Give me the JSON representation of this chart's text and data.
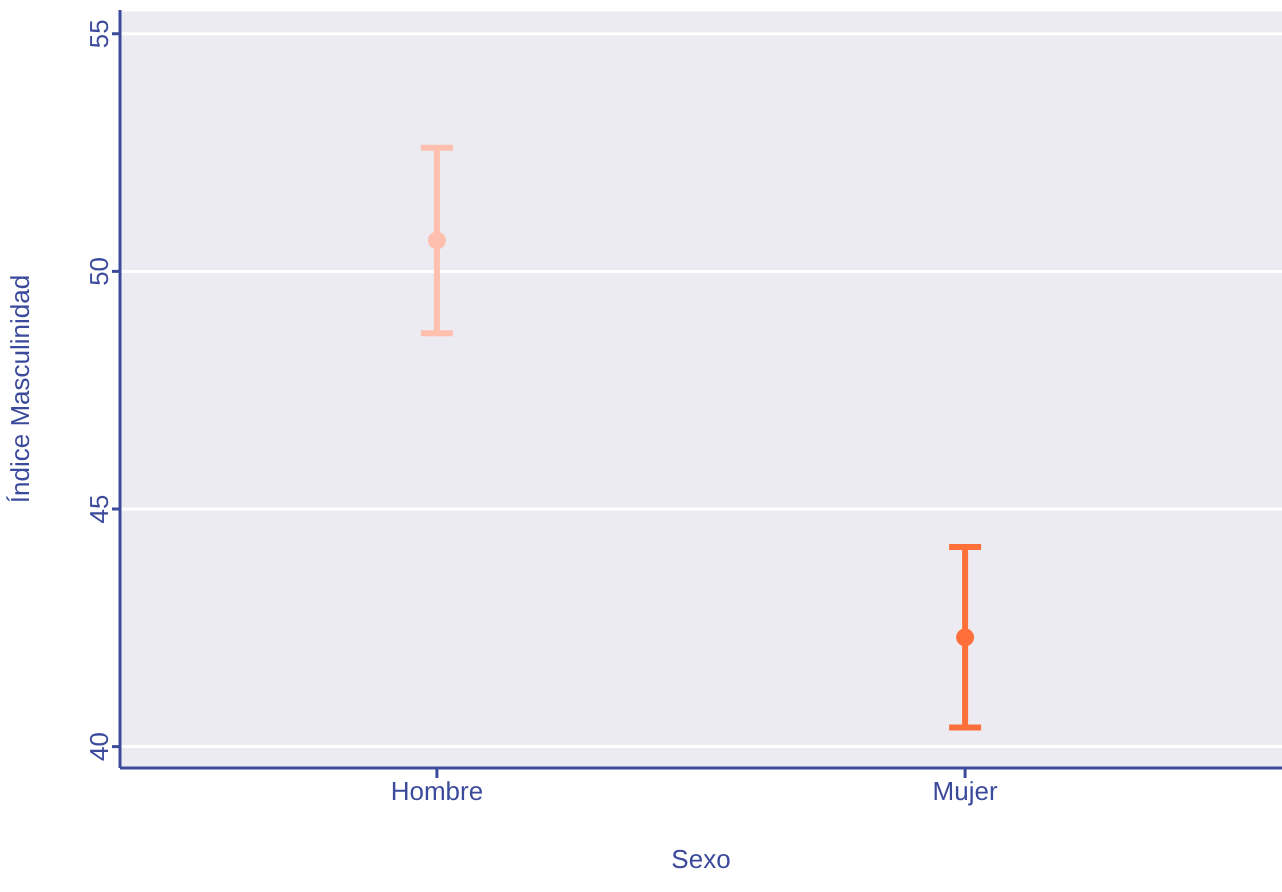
{
  "chart_data": {
    "type": "scatter",
    "xlabel": "Sexo",
    "ylabel": "Índice Masculinidad",
    "categories": [
      "Hombre",
      "Mujer"
    ],
    "values": [
      50.65,
      42.3
    ],
    "errors": [
      [
        48.7,
        52.6
      ],
      [
        40.4,
        44.2
      ]
    ],
    "colors": [
      "#ffbfae",
      "#ff6f3a"
    ],
    "ylim": [
      39.55,
      55.5
    ],
    "yticks": [
      40,
      45,
      50,
      55
    ],
    "grid": "y",
    "marker": "circle"
  }
}
